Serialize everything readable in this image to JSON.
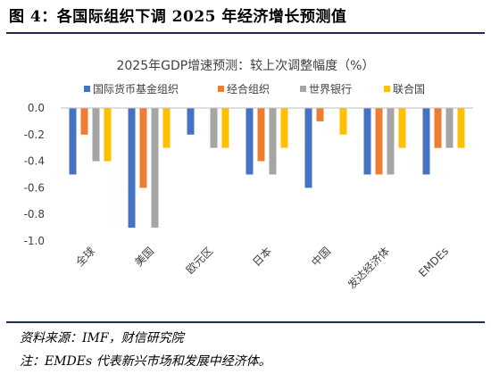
{
  "figure_title": "图 4：各国际组织下调 2025 年经济增长预测值",
  "source_note": "资料来源：IMF，财信研究院",
  "footnote": "注：EMDEs 代表新兴市场和发展中经济体。",
  "chart_data": {
    "type": "bar",
    "title": "2025年GDP增速预测：较上次调整幅度（%）",
    "categories": [
      "全球",
      "美国",
      "欧元区",
      "日本",
      "中国",
      "发达经济体",
      "EMDEs"
    ],
    "ylim": [
      -1.0,
      0.0
    ],
    "yticks": [
      0.0,
      -0.2,
      -0.4,
      -0.6,
      -0.8,
      -1.0
    ],
    "ytick_labels": [
      "0.0",
      "-0.2",
      "-0.4",
      "-0.6",
      "-0.8",
      "-1.0"
    ],
    "grid": false,
    "legend_position": "top",
    "series": [
      {
        "name": "国际货币基金组织",
        "color": "#4472C4",
        "values": [
          -0.5,
          -0.9,
          -0.2,
          -0.5,
          -0.6,
          -0.5,
          -0.5
        ]
      },
      {
        "name": "经合组织",
        "color": "#ED7D31",
        "values": [
          -0.2,
          -0.6,
          null,
          -0.4,
          -0.1,
          -0.5,
          -0.3
        ]
      },
      {
        "name": "世界银行",
        "color": "#A5A5A5",
        "values": [
          -0.4,
          -0.9,
          -0.3,
          -0.5,
          null,
          -0.5,
          -0.3
        ]
      },
      {
        "name": "联合国",
        "color": "#FFC000",
        "values": [
          -0.4,
          -0.3,
          -0.3,
          -0.3,
          -0.2,
          -0.3,
          -0.3
        ]
      }
    ]
  }
}
